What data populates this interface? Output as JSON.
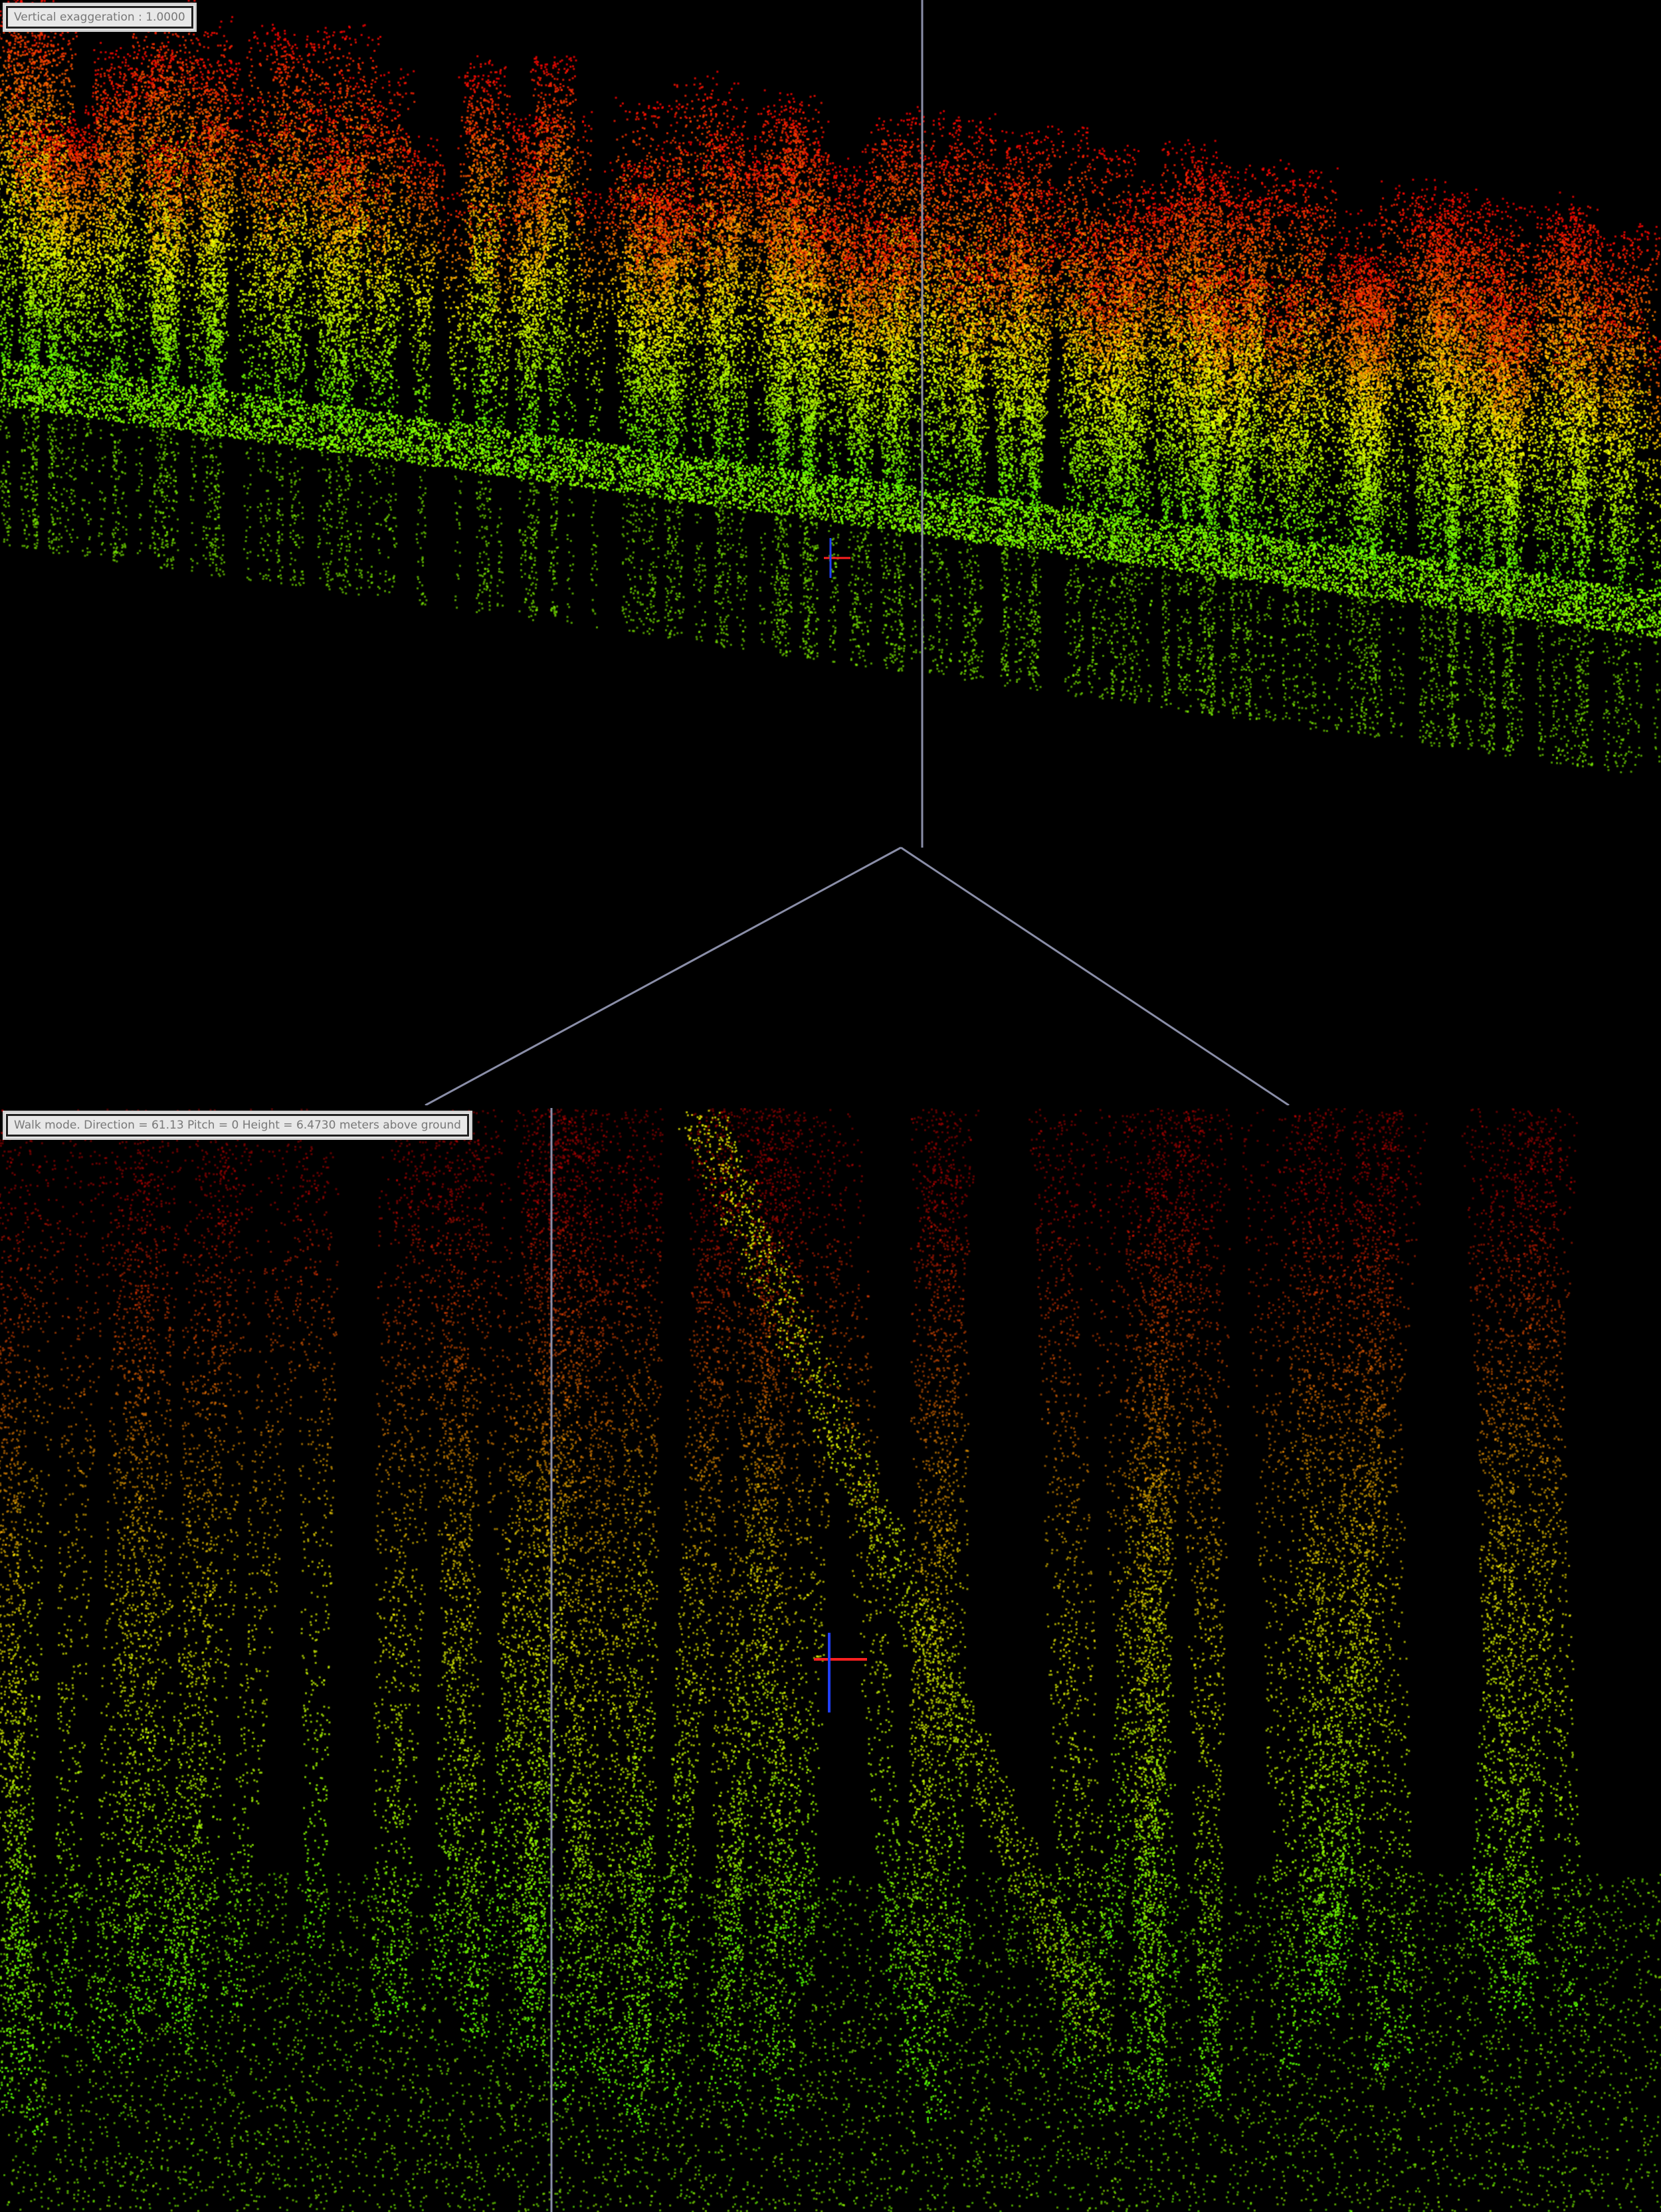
{
  "top_view": {
    "status_label": "Vertical exaggeration : 1.0000",
    "color_ramp": [
      "#ff0000",
      "#ff8000",
      "#ffff00",
      "#40ff00"
    ]
  },
  "bottom_view": {
    "status_label": "Walk mode. Direction = 61.13 Pitch = 0 Height = 6.4730 meters above ground",
    "color_ramp": [
      "#ff2000",
      "#ffb000",
      "#d0ff20",
      "#40d020"
    ]
  },
  "colors": {
    "background": "#000000",
    "guide_line": "#8a8ea8",
    "axis_x": "#ff2020",
    "axis_z": "#2040ff"
  }
}
